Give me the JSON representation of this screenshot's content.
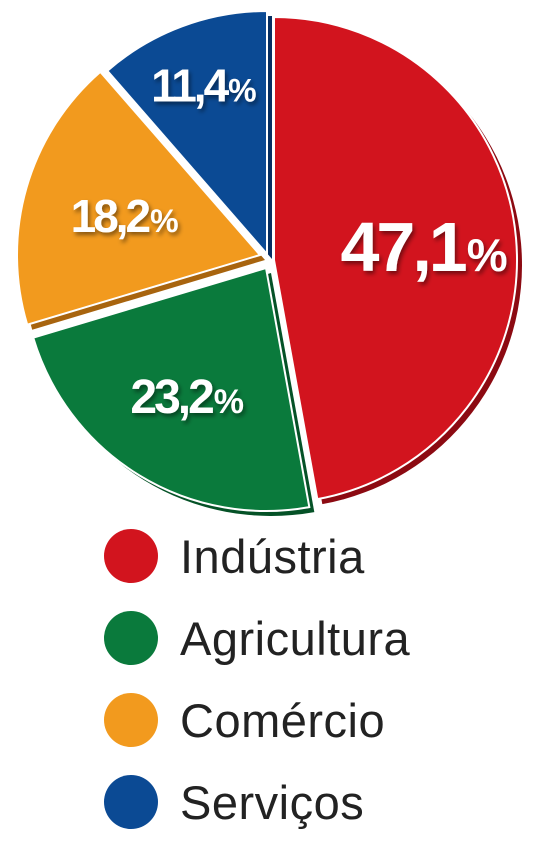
{
  "chart_data": {
    "type": "pie",
    "categories": [
      "Indústria",
      "Agricultura",
      "Comércio",
      "Serviços"
    ],
    "values": [
      47.1,
      23.2,
      18.2,
      11.4
    ],
    "value_labels": [
      "47,1",
      "23,2",
      "18,2",
      "11,4"
    ],
    "unit": "%",
    "colors": [
      "#d2141e",
      "#0a7a3c",
      "#f29a1e",
      "#0b4a94"
    ],
    "shade_colors": [
      "#8c0a12",
      "#055227",
      "#a8640e",
      "#062f63"
    ],
    "legend_position": "bottom"
  }
}
